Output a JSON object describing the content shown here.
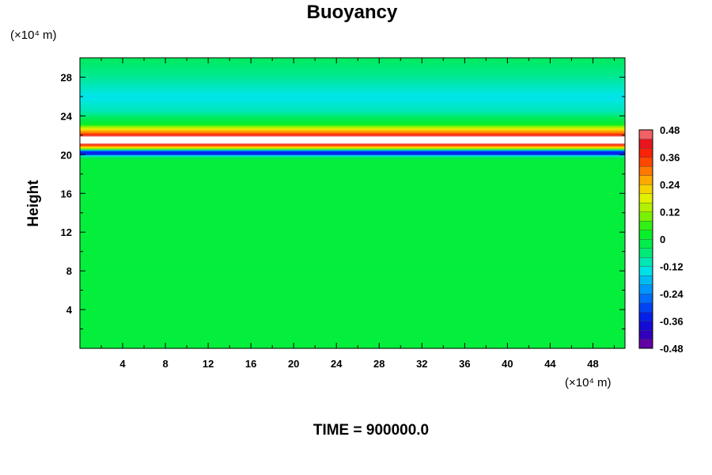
{
  "chart_data": {
    "type": "heatmap",
    "title": "Buoyancy",
    "ylabel": "Height",
    "xlabel": "",
    "x_unit": "(×10⁴ m)",
    "y_unit": "(×10⁴ m)",
    "xlim": [
      0,
      51
    ],
    "ylim": [
      0,
      30
    ],
    "x_ticks": [
      4,
      8,
      12,
      16,
      20,
      24,
      28,
      32,
      36,
      40,
      44,
      48
    ],
    "y_ticks": [
      4,
      8,
      12,
      16,
      20,
      24,
      28
    ],
    "x_tick_labels": [
      "4",
      "8",
      "12",
      "16",
      "20",
      "24",
      "28",
      "32",
      "36",
      "40",
      "44",
      "48"
    ],
    "y_tick_labels": [
      "4",
      "8",
      "12",
      "16",
      "20",
      "24",
      "28"
    ],
    "colorbar": {
      "min": -0.48,
      "max": 0.48,
      "step": 0.04,
      "tick_values": [
        -0.48,
        -0.36,
        -0.24,
        -0.12,
        0,
        0.12,
        0.24,
        0.36,
        0.48
      ],
      "tick_labels": [
        "-0.48",
        "-0.36",
        "-0.24",
        "-0.12",
        "0",
        "0.12",
        "0.24",
        "0.36",
        "0.48"
      ]
    },
    "field_profile": [
      {
        "z": 0.0,
        "value": 0.0
      },
      {
        "z": 19.6,
        "value": 0.0
      },
      {
        "z": 19.9,
        "value": -0.1
      },
      {
        "z": 20.1,
        "value": -0.36
      },
      {
        "z": 20.4,
        "value": -0.3
      },
      {
        "z": 20.7,
        "value": 0.18
      },
      {
        "z": 21.0,
        "value": 0.32
      },
      {
        "z": 21.3,
        "value": 0.6
      },
      {
        "z": 21.8,
        "value": 0.6
      },
      {
        "z": 22.1,
        "value": 0.36
      },
      {
        "z": 22.6,
        "value": 0.22
      },
      {
        "z": 23.2,
        "value": 0.02
      },
      {
        "z": 24.5,
        "value": -0.1
      },
      {
        "z": 26.0,
        "value": -0.14
      },
      {
        "z": 28.0,
        "value": -0.08
      },
      {
        "z": 30.0,
        "value": -0.04
      }
    ],
    "grid": false,
    "legend": "colorbar-right"
  },
  "footer": {
    "time_label": "TIME = 900000.0"
  }
}
